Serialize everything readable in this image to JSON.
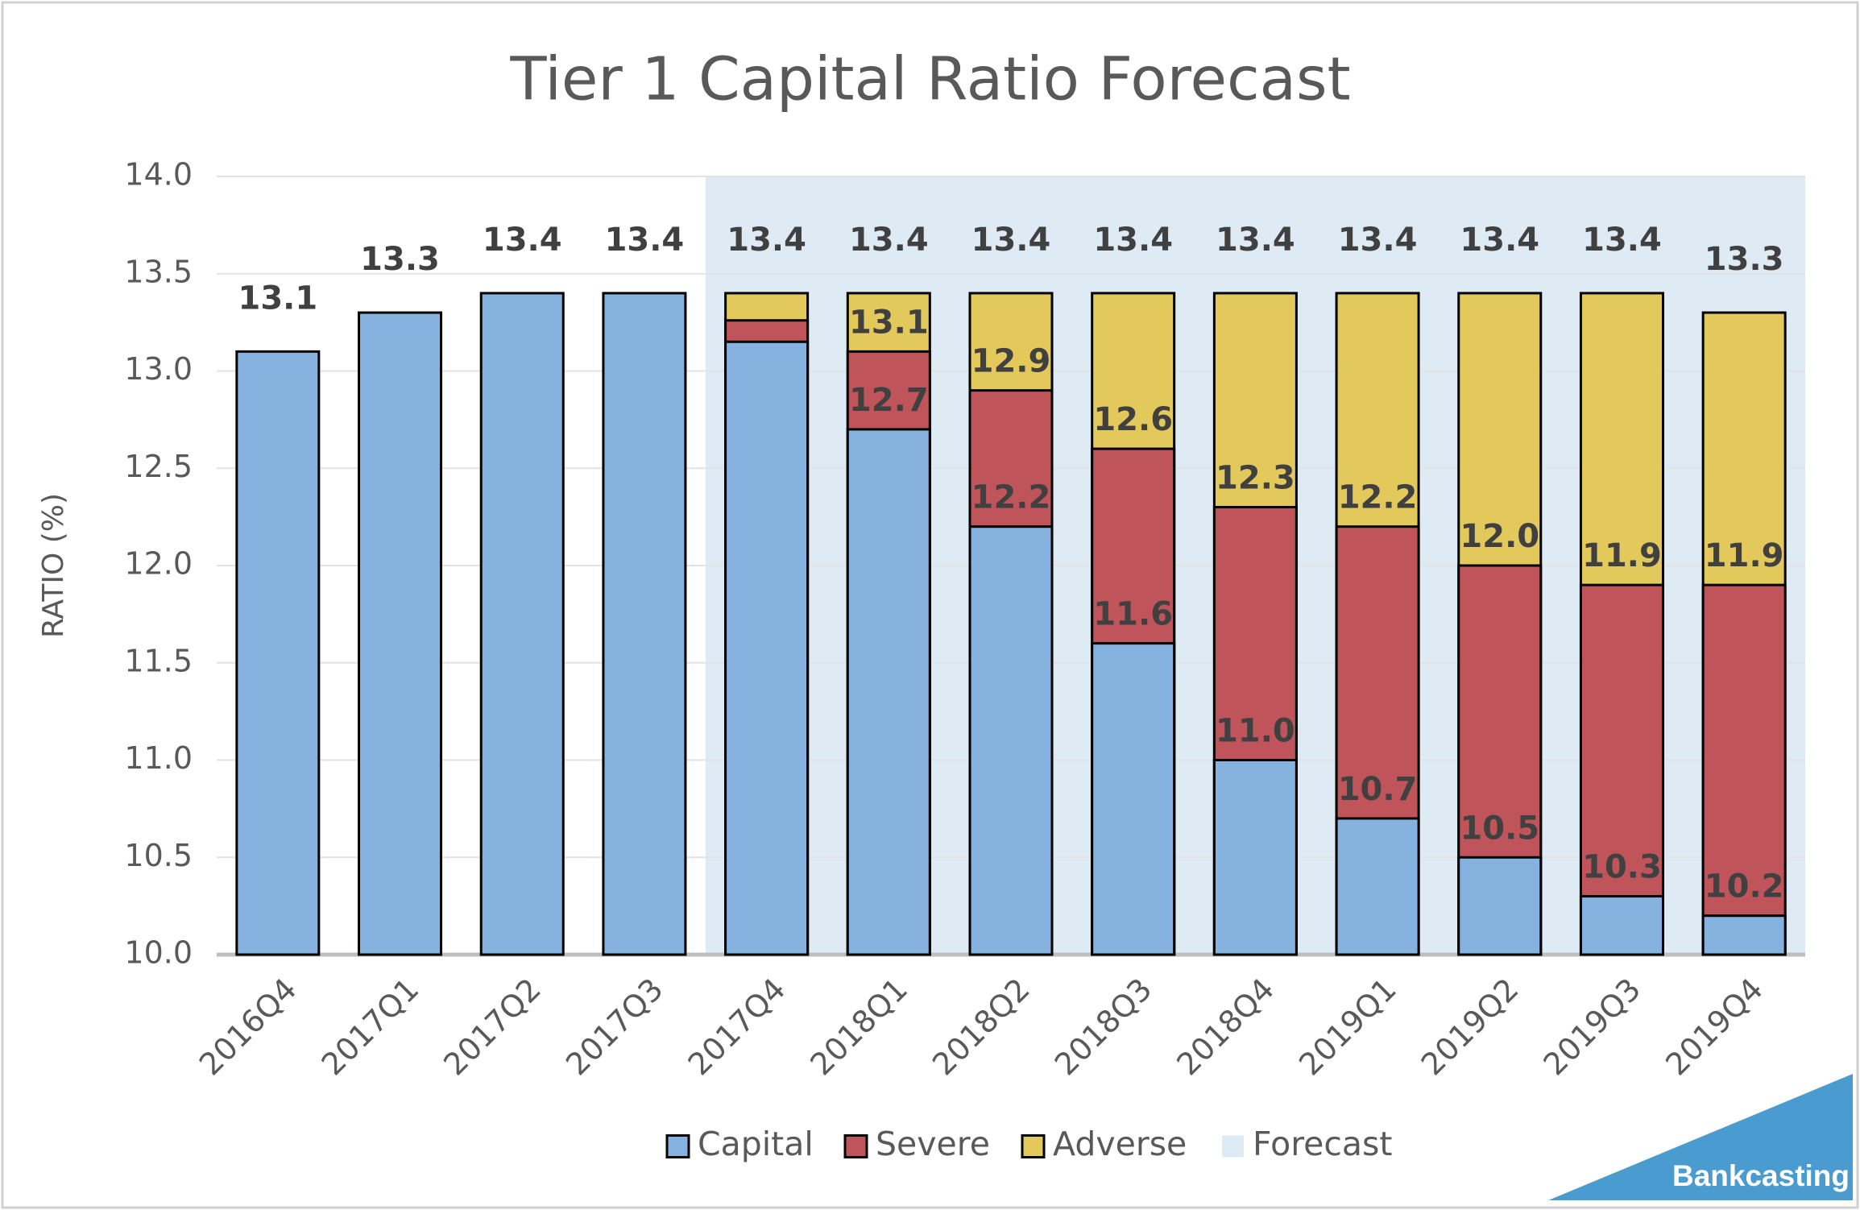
{
  "chart_data": {
    "type": "bar",
    "title": "Tier 1 Capital Ratio Forecast",
    "y_label": "RATIO (%)",
    "categories": [
      "2016Q4",
      "2017Q1",
      "2017Q2",
      "2017Q3",
      "2017Q4",
      "2018Q1",
      "2018Q2",
      "2018Q3",
      "2018Q4",
      "2019Q1",
      "2019Q2",
      "2019Q3",
      "2019Q4"
    ],
    "series": [
      {
        "name": "Capital",
        "color": "#85b2df",
        "values": [
          13.1,
          13.3,
          13.4,
          13.4,
          13.15,
          12.7,
          12.2,
          11.6,
          11.0,
          10.7,
          10.5,
          10.3,
          10.2
        ],
        "value_labels": [
          "13.1",
          "13.3",
          "13.4",
          "13.4",
          null,
          "12.7",
          "12.2",
          "11.6",
          "11.0",
          "10.7",
          "10.5",
          "10.3",
          "10.2"
        ]
      },
      {
        "name": "Severe",
        "color": "#c0545b",
        "values": [
          null,
          null,
          null,
          null,
          13.26,
          13.1,
          12.9,
          12.6,
          12.3,
          12.2,
          12.0,
          11.9,
          11.9
        ],
        "value_labels": [
          null,
          null,
          null,
          null,
          null,
          "13.1",
          "12.9",
          "12.6",
          "12.3",
          "12.2",
          "12.0",
          "11.9",
          "11.9"
        ]
      },
      {
        "name": "Adverse",
        "color": "#e3c95b",
        "values": [
          null,
          null,
          null,
          null,
          13.4,
          13.4,
          13.4,
          13.4,
          13.4,
          13.4,
          13.4,
          13.4,
          13.3
        ],
        "value_labels": [
          null,
          null,
          null,
          null,
          "13.4",
          "13.4",
          "13.4",
          "13.4",
          "13.4",
          "13.4",
          "13.4",
          "13.4",
          "13.3"
        ]
      }
    ],
    "forecast": {
      "name": "Forecast",
      "color": "#deebf5",
      "from": "2017Q4"
    },
    "ylim": [
      10,
      14
    ],
    "yticks": [
      {
        "value": 10,
        "label": "10.0"
      },
      {
        "value": 10.5,
        "label": "10.5"
      },
      {
        "value": 11,
        "label": "11.0"
      },
      {
        "value": 11.5,
        "label": "11.5"
      },
      {
        "value": 12,
        "label": "12.0"
      },
      {
        "value": 12.5,
        "label": "12.5"
      },
      {
        "value": 13,
        "label": "13.0"
      },
      {
        "value": 13.5,
        "label": "13.5"
      },
      {
        "value": 14,
        "label": "14.0"
      }
    ],
    "grid": true,
    "watermark": "Bankcasting"
  }
}
